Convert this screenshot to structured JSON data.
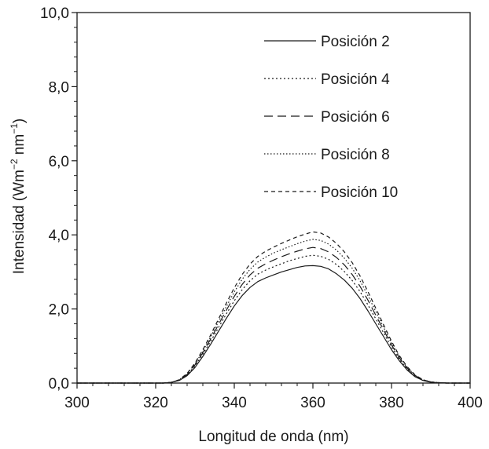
{
  "chart_data": {
    "type": "line",
    "xlabel": "Longitud de onda (nm)",
    "ylabel": {
      "base": "Intensidad (Wm",
      "exp1": "−2",
      "mid": " nm",
      "exp2": "−1",
      "end": ")"
    },
    "xlim": [
      300,
      400
    ],
    "ylim": [
      0,
      10
    ],
    "x_ticks": [
      300,
      320,
      340,
      360,
      380,
      400
    ],
    "x_tick_labels": [
      "300",
      "320",
      "340",
      "360",
      "380",
      "400"
    ],
    "y_ticks": [
      0,
      2,
      4,
      6,
      8,
      10
    ],
    "y_tick_labels": [
      "0,0",
      "2,0",
      "4,0",
      "6,0",
      "8,0",
      "10,0"
    ],
    "grid": false,
    "legend_position": "top-right",
    "x": [
      300,
      322,
      324,
      326,
      328,
      330,
      332,
      334,
      336,
      338,
      340,
      342,
      344,
      346,
      348,
      350,
      352,
      354,
      356,
      358,
      360,
      362,
      364,
      366,
      368,
      370,
      372,
      374,
      376,
      378,
      380,
      382,
      384,
      386,
      388,
      390,
      392,
      394,
      396,
      400
    ],
    "series": [
      {
        "name": "Posición 2",
        "dash": "solid",
        "values": [
          0,
          0,
          0.02,
          0.07,
          0.2,
          0.42,
          0.72,
          1.05,
          1.4,
          1.75,
          2.08,
          2.36,
          2.58,
          2.74,
          2.84,
          2.92,
          3.0,
          3.06,
          3.12,
          3.16,
          3.17,
          3.15,
          3.08,
          2.95,
          2.78,
          2.56,
          2.28,
          1.95,
          1.6,
          1.25,
          0.9,
          0.6,
          0.35,
          0.17,
          0.07,
          0.02,
          0.01,
          0,
          0,
          0
        ]
      },
      {
        "name": "Posición 4",
        "dash": "dotted",
        "values": [
          0,
          0,
          0.02,
          0.08,
          0.22,
          0.46,
          0.78,
          1.13,
          1.5,
          1.87,
          2.22,
          2.52,
          2.76,
          2.94,
          3.05,
          3.14,
          3.22,
          3.3,
          3.36,
          3.42,
          3.45,
          3.42,
          3.34,
          3.2,
          3.01,
          2.77,
          2.47,
          2.11,
          1.73,
          1.35,
          0.97,
          0.64,
          0.38,
          0.19,
          0.08,
          0.03,
          0.01,
          0,
          0,
          0
        ]
      },
      {
        "name": "Posición 6",
        "dash": "longdash",
        "values": [
          0,
          0,
          0.02,
          0.08,
          0.23,
          0.49,
          0.82,
          1.19,
          1.58,
          1.97,
          2.34,
          2.66,
          2.92,
          3.1,
          3.22,
          3.32,
          3.41,
          3.49,
          3.56,
          3.62,
          3.66,
          3.63,
          3.54,
          3.39,
          3.19,
          2.93,
          2.61,
          2.24,
          1.83,
          1.43,
          1.03,
          0.68,
          0.4,
          0.2,
          0.08,
          0.03,
          0.01,
          0,
          0,
          0
        ]
      },
      {
        "name": "Posición 8",
        "dash": "finedot",
        "values": [
          0,
          0,
          0.02,
          0.09,
          0.25,
          0.51,
          0.86,
          1.25,
          1.66,
          2.07,
          2.46,
          2.8,
          3.07,
          3.27,
          3.4,
          3.51,
          3.6,
          3.68,
          3.76,
          3.83,
          3.88,
          3.85,
          3.75,
          3.59,
          3.37,
          3.1,
          2.76,
          2.36,
          1.93,
          1.5,
          1.08,
          0.71,
          0.42,
          0.21,
          0.09,
          0.03,
          0.01,
          0,
          0,
          0
        ]
      },
      {
        "name": "Posición 10",
        "dash": "shortdash",
        "values": [
          0,
          0,
          0.02,
          0.09,
          0.26,
          0.54,
          0.9,
          1.3,
          1.73,
          2.16,
          2.57,
          2.93,
          3.21,
          3.42,
          3.56,
          3.67,
          3.77,
          3.86,
          3.95,
          4.02,
          4.08,
          4.05,
          3.94,
          3.77,
          3.54,
          3.25,
          2.89,
          2.47,
          2.02,
          1.57,
          1.13,
          0.74,
          0.44,
          0.22,
          0.09,
          0.03,
          0.01,
          0,
          0,
          0
        ]
      }
    ]
  }
}
